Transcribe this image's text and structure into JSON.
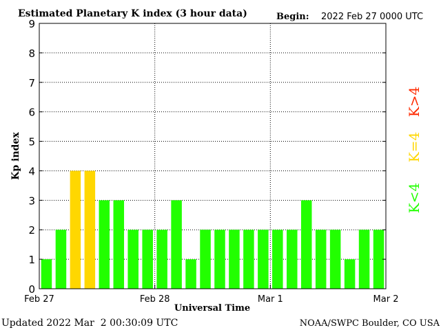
{
  "chart_data": {
    "type": "bar",
    "title": "Estimated Planetary K index (3 hour data)",
    "begin_label": "Begin:",
    "begin_value": "2022 Feb 27 0000 UTC",
    "xlabel": "Universal Time",
    "ylabel": "Kp index",
    "ylim": [
      0,
      9
    ],
    "yticks": [
      "0",
      "1",
      "2",
      "3",
      "4",
      "5",
      "6",
      "7",
      "8",
      "9"
    ],
    "xticks": [
      {
        "label": "Feb 27",
        "day": 0
      },
      {
        "label": "Feb 28",
        "day": 1
      },
      {
        "label": "Mar 1",
        "day": 2
      },
      {
        "label": "Mar 2",
        "day": 3
      }
    ],
    "values": [
      1,
      2,
      4,
      4,
      3,
      3,
      2,
      2,
      2,
      3,
      1,
      2,
      2,
      2,
      2,
      2,
      2,
      2,
      3,
      2,
      2,
      1,
      2,
      2
    ],
    "interval_hours": 3,
    "colors": {
      "low": "#22ff00",
      "equal": "#ffd700",
      "high": "#ff2a00"
    },
    "legend": [
      {
        "label": "K<4",
        "level": "low"
      },
      {
        "label": "K=4",
        "level": "equal"
      },
      {
        "label": "K>4",
        "level": "high"
      }
    ],
    "legend_placement": "right",
    "grid": "dotted"
  },
  "footer": {
    "updated": "Updated 2022 Mar  2 00:30:09 UTC",
    "source": "NOAA/SWPC Boulder, CO USA"
  }
}
